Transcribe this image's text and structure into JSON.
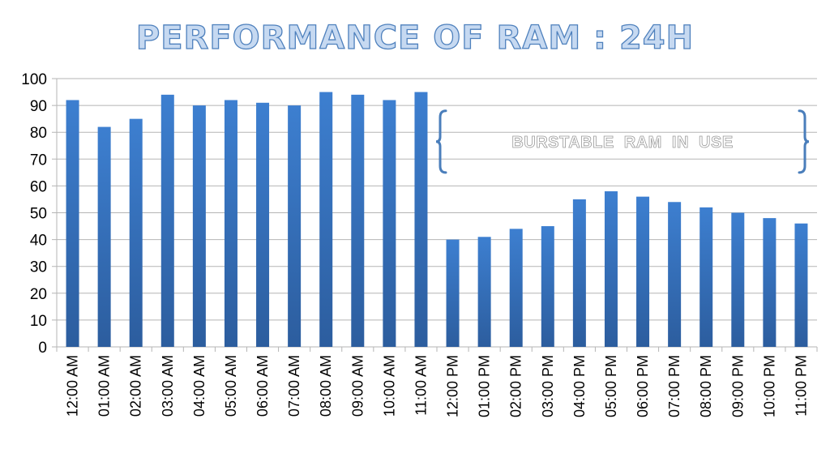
{
  "chart_data": {
    "type": "bar",
    "title": "PERFORMANCE OF RAM : 24H",
    "xlabel": "",
    "ylabel": "",
    "ylim": [
      0,
      100
    ],
    "yticks": [
      0,
      10,
      20,
      30,
      40,
      50,
      60,
      70,
      80,
      90,
      100
    ],
    "grid": true,
    "legend": "none",
    "bar_color": "#3a78c9",
    "categories": [
      "12:00 AM",
      "01:00 AM",
      "02:00 AM",
      "03:00 AM",
      "04:00 AM",
      "05:00 AM",
      "06:00 AM",
      "07:00 AM",
      "08:00 AM",
      "09:00 AM",
      "10:00 AM",
      "11:00 AM",
      "12:00 PM",
      "01:00 PM",
      "02:00 PM",
      "03:00 PM",
      "04:00 PM",
      "05:00 PM",
      "06:00 PM",
      "07:00 PM",
      "08:00 PM",
      "09:00 PM",
      "10:00 PM",
      "11:00 PM"
    ],
    "values": [
      92,
      82,
      85,
      94,
      90,
      92,
      91,
      90,
      95,
      94,
      92,
      95,
      40,
      41,
      44,
      45,
      55,
      58,
      56,
      54,
      52,
      50,
      48,
      46
    ],
    "annotations": [
      {
        "text": "BURSTABLE  RAM  IN  USE",
        "span": [
          "12:00 PM",
          "11:00 PM"
        ],
        "y_range": [
          65,
          88
        ],
        "style": "curly-braces"
      }
    ]
  }
}
